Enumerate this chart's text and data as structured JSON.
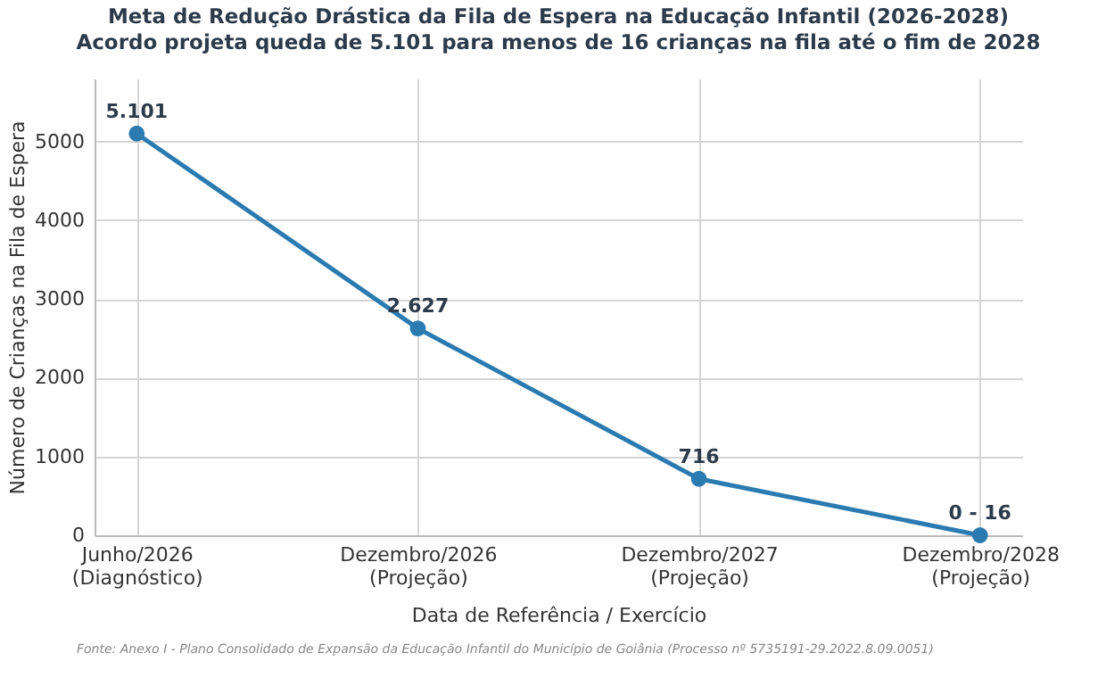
{
  "chart_data": {
    "type": "line",
    "title": "Meta de Redução Drástica da Fila de Espera na Educação Infantil (2026-2028)",
    "subtitle": "Acordo projeta queda de 5.101 para menos de 16 crianças na fila até o fim de 2028",
    "xlabel": "Data de Referência / Exercício",
    "ylabel": "Número de Crianças na Fila de Espera",
    "categories": [
      "Junho/2026\n(Diagnóstico)",
      "Dezembro/2026\n(Projeção)",
      "Dezembro/2027\n(Projeção)",
      "Dezembro/2028\n(Projeção)"
    ],
    "series": [
      {
        "color": "#2b7bb0",
        "values": [
          5101,
          2627,
          716,
          0
        ],
        "value_labels": [
          "5.101",
          "2.627",
          "716",
          "0 - 16"
        ]
      }
    ],
    "ylim": [
      0,
      5800
    ],
    "yticks": [
      0,
      1000,
      2000,
      3000,
      4000,
      5000
    ],
    "grid": true,
    "marker": "circle",
    "line_style": "solid",
    "annotations": [
      "Fonte: Anexo I - Plano Consolidado de Expansão da Educação Infantil do Município de Goiânia (Processo nº 5735191-29.2022.8.09.0051)"
    ]
  }
}
